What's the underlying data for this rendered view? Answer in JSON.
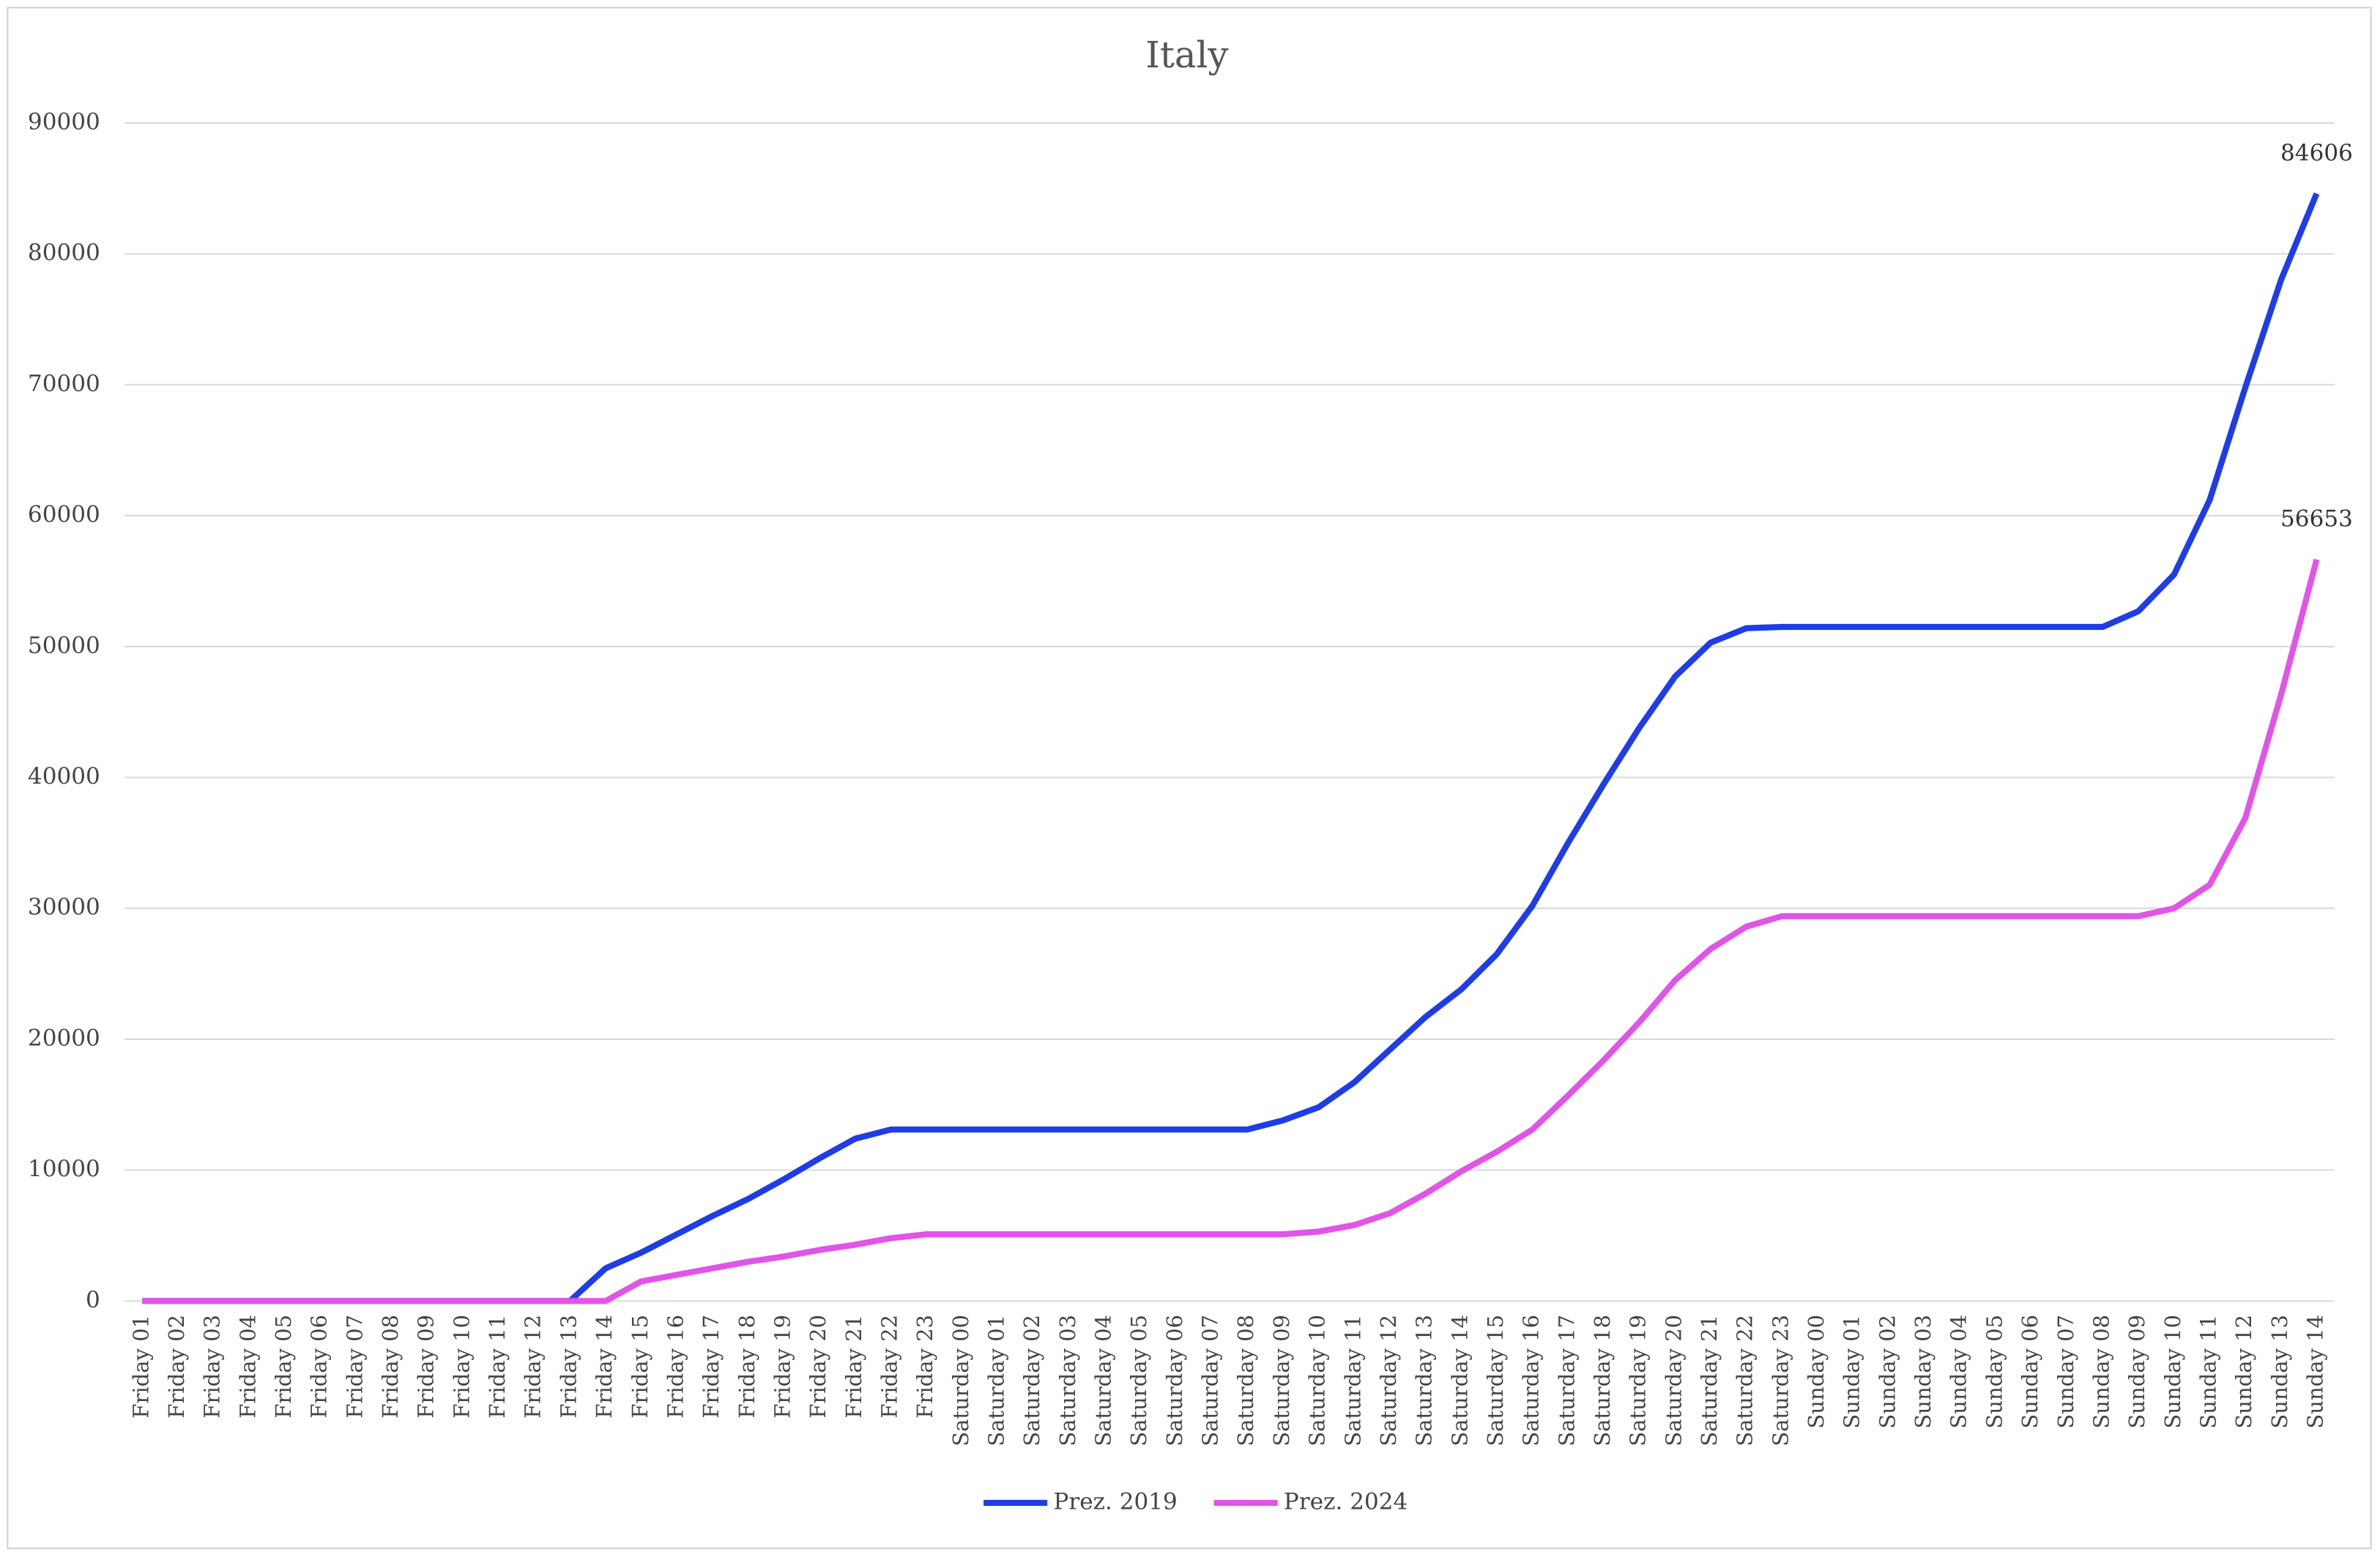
{
  "chart_data": {
    "type": "line",
    "title": "Italy",
    "categories": [
      "Friday 01",
      "Friday 02",
      "Friday 03",
      "Friday 04",
      "Friday 05",
      "Friday 06",
      "Friday 07",
      "Friday 08",
      "Friday 09",
      "Friday 10",
      "Friday 11",
      "Friday 12",
      "Friday 13",
      "Friday 14",
      "Friday 15",
      "Friday 16",
      "Friday 17",
      "Friday 18",
      "Friday 19",
      "Friday 20",
      "Friday 21",
      "Friday 22",
      "Friday 23",
      "Saturday 00",
      "Saturday 01",
      "Saturday 02",
      "Saturday 03",
      "Saturday 04",
      "Saturday 05",
      "Saturday 06",
      "Saturday 07",
      "Saturday 08",
      "Saturday 09",
      "Saturday 10",
      "Saturday 11",
      "Saturday 12",
      "Saturday 13",
      "Saturday 14",
      "Saturday 15",
      "Saturday 16",
      "Saturday 17",
      "Saturday 18",
      "Saturday 19",
      "Saturday 20",
      "Saturday 21",
      "Saturday 22",
      "Saturday 23",
      "Sunday 00",
      "Sunday 01",
      "Sunday 02",
      "Sunday 03",
      "Sunday 04",
      "Sunday 05",
      "Sunday 06",
      "Sunday 07",
      "Sunday 08",
      "Sunday 09",
      "Sunday 10",
      "Sunday 11",
      "Sunday 12",
      "Sunday 13",
      "Sunday 14"
    ],
    "series": [
      {
        "name": "Prez. 2019",
        "color": "#1f3de6",
        "values": [
          0,
          0,
          0,
          0,
          0,
          0,
          0,
          0,
          0,
          0,
          0,
          0,
          0,
          2500,
          3700,
          5100,
          6500,
          7800,
          9300,
          10900,
          12400,
          13100,
          13100,
          13100,
          13100,
          13100,
          13100,
          13100,
          13100,
          13100,
          13100,
          13100,
          13800,
          14800,
          16700,
          19200,
          21700,
          23800,
          26500,
          30200,
          35000,
          39500,
          43800,
          47700,
          50300,
          51400,
          51500,
          51500,
          51500,
          51500,
          51500,
          51500,
          51500,
          51500,
          51500,
          51500,
          52700,
          55500,
          61200,
          69800,
          78000,
          84606
        ]
      },
      {
        "name": "Prez. 2024",
        "color": "#e055e8",
        "values": [
          0,
          0,
          0,
          0,
          0,
          0,
          0,
          0,
          0,
          0,
          0,
          0,
          0,
          0,
          1500,
          2000,
          2500,
          3000,
          3400,
          3900,
          4300,
          4800,
          5100,
          5100,
          5100,
          5100,
          5100,
          5100,
          5100,
          5100,
          5100,
          5100,
          5100,
          5300,
          5800,
          6700,
          8200,
          9900,
          11400,
          13100,
          15700,
          18400,
          21300,
          24500,
          26900,
          28600,
          29400,
          29400,
          29400,
          29400,
          29400,
          29400,
          29400,
          29400,
          29400,
          29400,
          29400,
          30000,
          31800,
          36900,
          46300,
          56653
        ]
      }
    ],
    "ylim": [
      0,
      90000
    ],
    "yticks": [
      0,
      10000,
      20000,
      30000,
      40000,
      50000,
      60000,
      70000,
      80000,
      90000
    ],
    "grid": true,
    "legend": "bottom"
  }
}
